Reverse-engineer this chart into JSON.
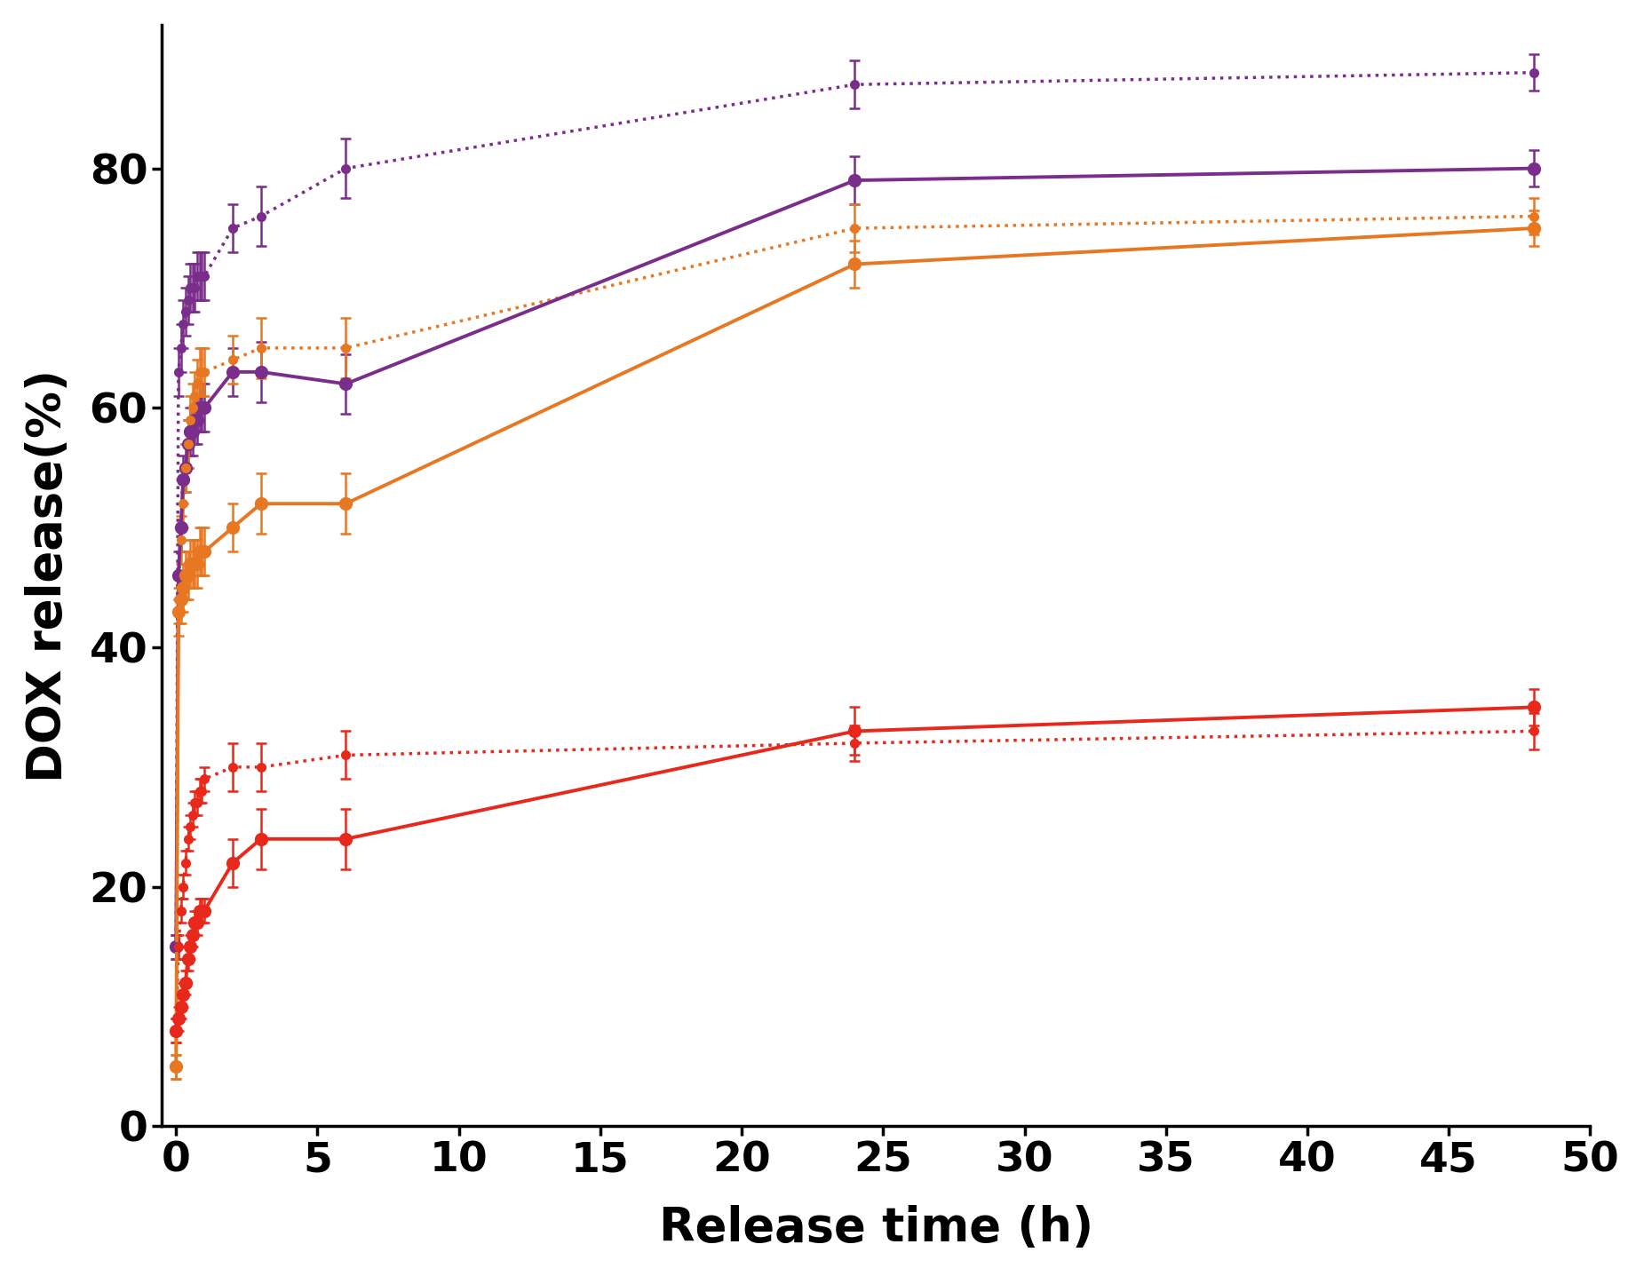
{
  "purple_solid_x": [
    0,
    0.083,
    0.167,
    0.25,
    0.333,
    0.417,
    0.5,
    0.583,
    0.667,
    0.75,
    0.833,
    0.917,
    1,
    2,
    3,
    6,
    24,
    48
  ],
  "purple_solid_y": [
    15,
    46,
    50,
    54,
    55,
    57,
    58,
    58,
    59,
    59,
    60,
    60,
    60,
    63,
    63,
    62,
    79,
    80
  ],
  "purple_solid_yerr": [
    1.0,
    2.0,
    2.0,
    2.0,
    2.0,
    2.0,
    2.0,
    2.0,
    2.0,
    2.0,
    2.0,
    2.0,
    2.0,
    2.0,
    2.5,
    2.5,
    2.0,
    1.5
  ],
  "purple_dotted_x": [
    0,
    0.083,
    0.167,
    0.25,
    0.333,
    0.417,
    0.5,
    0.583,
    0.667,
    0.75,
    0.833,
    0.917,
    1,
    2,
    3,
    6,
    24,
    48
  ],
  "purple_dotted_y": [
    15,
    63,
    65,
    67,
    68,
    69,
    70,
    70,
    70,
    71,
    71,
    71,
    71,
    75,
    76,
    80,
    87,
    88
  ],
  "purple_dotted_yerr": [
    1.0,
    2.0,
    2.0,
    2.0,
    2.0,
    2.0,
    2.0,
    2.0,
    2.0,
    2.0,
    2.0,
    2.0,
    2.0,
    2.0,
    2.5,
    2.5,
    2.0,
    1.5
  ],
  "orange_solid_x": [
    0,
    0.083,
    0.167,
    0.25,
    0.333,
    0.417,
    0.5,
    0.583,
    0.667,
    0.75,
    0.833,
    0.917,
    1,
    2,
    3,
    6,
    24,
    48
  ],
  "orange_solid_y": [
    5,
    43,
    44,
    45,
    46,
    46,
    47,
    47,
    47,
    47,
    48,
    48,
    48,
    50,
    52,
    52,
    72,
    75
  ],
  "orange_solid_yerr": [
    1.0,
    2.0,
    2.0,
    2.0,
    2.0,
    2.0,
    2.0,
    2.0,
    2.0,
    2.0,
    2.0,
    2.0,
    2.0,
    2.0,
    2.5,
    2.5,
    2.0,
    1.5
  ],
  "orange_dotted_x": [
    0,
    0.083,
    0.167,
    0.25,
    0.333,
    0.417,
    0.5,
    0.583,
    0.667,
    0.75,
    0.833,
    0.917,
    1,
    2,
    3,
    6,
    24,
    48
  ],
  "orange_dotted_y": [
    5,
    44,
    49,
    52,
    55,
    57,
    59,
    60,
    61,
    62,
    63,
    63,
    63,
    64,
    65,
    65,
    75,
    76
  ],
  "orange_dotted_yerr": [
    1.0,
    2.0,
    2.0,
    2.0,
    2.0,
    2.0,
    2.0,
    2.0,
    2.0,
    2.0,
    2.0,
    2.0,
    2.0,
    2.0,
    2.5,
    2.5,
    2.0,
    1.5
  ],
  "red_solid_x": [
    0,
    0.083,
    0.167,
    0.25,
    0.333,
    0.417,
    0.5,
    0.583,
    0.667,
    0.75,
    0.833,
    0.917,
    1,
    2,
    3,
    6,
    24,
    48
  ],
  "red_solid_y": [
    8,
    9,
    10,
    11,
    12,
    14,
    15,
    16,
    17,
    17,
    18,
    18,
    18,
    22,
    24,
    24,
    33,
    35
  ],
  "red_solid_yerr": [
    1.0,
    1.0,
    1.0,
    1.0,
    1.0,
    1.0,
    1.0,
    1.0,
    1.0,
    1.0,
    1.0,
    1.0,
    1.0,
    2.0,
    2.5,
    2.5,
    2.0,
    1.5
  ],
  "red_dotted_x": [
    0,
    0.083,
    0.167,
    0.25,
    0.333,
    0.417,
    0.5,
    0.583,
    0.667,
    0.75,
    0.833,
    0.917,
    1,
    2,
    3,
    6,
    24,
    48
  ],
  "red_dotted_y": [
    8,
    15,
    18,
    20,
    22,
    24,
    25,
    26,
    27,
    27,
    28,
    28,
    29,
    30,
    30,
    31,
    32,
    33
  ],
  "red_dotted_yerr": [
    1.0,
    1.0,
    1.0,
    1.0,
    1.0,
    1.0,
    1.0,
    1.0,
    1.0,
    1.0,
    1.0,
    1.0,
    1.0,
    2.0,
    2.0,
    2.0,
    1.5,
    1.5
  ],
  "purple_color": "#7B2D8B",
  "orange_color": "#E87722",
  "red_color": "#E8281A",
  "xlabel": "Release time (h)",
  "ylabel": "DOX release(%)",
  "xlim": [
    -0.5,
    50
  ],
  "ylim": [
    0,
    92
  ],
  "xticks": [
    0,
    5,
    10,
    15,
    20,
    25,
    30,
    35,
    40,
    45,
    50
  ],
  "yticks": [
    0,
    20,
    40,
    60,
    80
  ],
  "marker_size_solid": 11,
  "marker_size_dotted": 8,
  "linewidth_solid": 2.8,
  "linewidth_dotted": 2.5,
  "capsize": 4
}
